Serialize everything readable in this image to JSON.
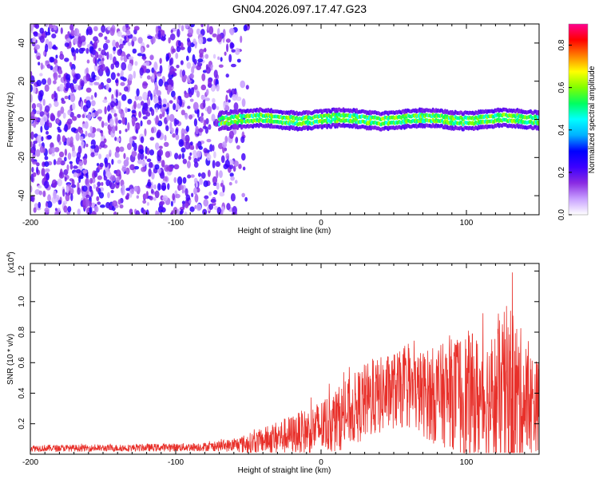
{
  "title": "GN04.2026.097.17.47.G23",
  "chart_data": [
    {
      "type": "heatmap",
      "xlabel": "Height of straight line (km)",
      "ylabel": "Frequency (Hz)",
      "xlim": [
        -200,
        150
      ],
      "ylim": [
        -50,
        50
      ],
      "xticks": [
        -200,
        -100,
        0,
        100
      ],
      "xtick_labels": [
        "-200",
        "-100",
        "0",
        "100"
      ],
      "yticks": [
        -40,
        -20,
        0,
        20,
        40
      ],
      "ytick_labels": [
        "-40",
        "-20",
        "0",
        "20",
        "40"
      ],
      "colorbar": {
        "label": "Normalized spectral amplitude",
        "range": [
          0,
          0.9
        ],
        "ticks": [
          0.0,
          0.2,
          0.4,
          0.6,
          0.8
        ],
        "tick_labels": [
          "0.0",
          "0.2",
          "0.4",
          "0.6",
          "0.8"
        ],
        "colors": [
          "#ffffff",
          "#c8a0ff",
          "#8a2be2",
          "#3c00ff",
          "#0000ff",
          "#00b0ff",
          "#00ffff",
          "#00ff60",
          "#80ff00",
          "#ffff00",
          "#ff8000",
          "#ff0000",
          "#ff0090"
        ]
      },
      "regions": [
        {
          "name": "broadband noise",
          "x_range": [
            -200,
            -50
          ],
          "freq_range": [
            -50,
            50
          ],
          "amplitude": 0.15
        },
        {
          "name": "narrowband carrier",
          "x_range": [
            -70,
            150
          ],
          "center_freq": 0,
          "half_width_hz": 4,
          "peak_amplitude": 0.85
        }
      ]
    },
    {
      "type": "line",
      "xlabel": "Height of straight line (km)",
      "ylabel": "SNR (10 * v/v)",
      "y_multiplier": "(x10",
      "y_multiplier_exp": "4",
      "y_multiplier_close": ")",
      "xlim": [
        -200,
        150
      ],
      "ylim": [
        0,
        1.25
      ],
      "xticks": [
        -200,
        -100,
        0,
        100
      ],
      "xtick_labels": [
        "-200",
        "-100",
        "0",
        "100"
      ],
      "yticks": [
        0.2,
        0.4,
        0.6,
        0.8,
        1.0,
        1.2
      ],
      "ytick_labels": [
        "0.2",
        "0.4",
        "0.6",
        "0.8",
        "1.0",
        "1.2"
      ],
      "color": "#e8302a",
      "envelope": {
        "x": [
          -200,
          -150,
          -100,
          -75,
          -60,
          -50,
          -40,
          -30,
          -20,
          -10,
          0,
          10,
          20,
          30,
          40,
          50,
          60,
          70,
          80,
          90,
          100,
          110,
          120,
          130,
          140,
          150
        ],
        "mean": [
          0.04,
          0.04,
          0.045,
          0.05,
          0.06,
          0.07,
          0.09,
          0.11,
          0.13,
          0.15,
          0.18,
          0.22,
          0.28,
          0.34,
          0.38,
          0.42,
          0.42,
          0.4,
          0.38,
          0.4,
          0.38,
          0.36,
          0.36,
          0.38,
          0.34,
          0.32
        ],
        "max": [
          0.07,
          0.07,
          0.08,
          0.09,
          0.12,
          0.16,
          0.2,
          0.26,
          0.3,
          0.35,
          0.42,
          0.5,
          0.58,
          0.68,
          0.72,
          0.76,
          0.76,
          0.78,
          0.82,
          0.88,
          0.96,
          0.92,
          0.98,
          1.25,
          0.9,
          0.7
        ]
      }
    }
  ]
}
